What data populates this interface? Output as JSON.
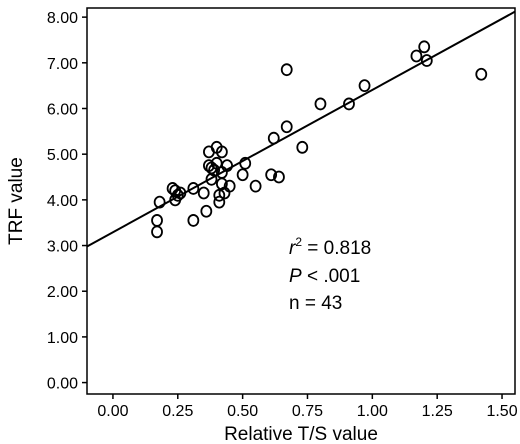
{
  "chart_data": {
    "type": "scatter",
    "xlabel": "Relative T/S value",
    "ylabel": "TRF value",
    "xlim": [
      -0.1,
      1.55
    ],
    "ylim": [
      -0.25,
      8.2
    ],
    "x_ticks": [
      "0.00",
      "0.25",
      "0.50",
      "0.75",
      "1.00",
      "1.25",
      "1.50"
    ],
    "x_tick_values": [
      0,
      0.25,
      0.5,
      0.75,
      1.0,
      1.25,
      1.5
    ],
    "y_ticks": [
      "0.00",
      "1.00",
      "2.00",
      "3.00",
      "4.00",
      "5.00",
      "6.00",
      "7.00",
      "8.00"
    ],
    "y_tick_values": [
      0,
      1,
      2,
      3,
      4,
      5,
      6,
      7,
      8
    ],
    "grid": false,
    "points": [
      {
        "x": 0.17,
        "y": 3.3
      },
      {
        "x": 0.17,
        "y": 3.55
      },
      {
        "x": 0.18,
        "y": 3.95
      },
      {
        "x": 0.23,
        "y": 4.25
      },
      {
        "x": 0.24,
        "y": 4.2
      },
      {
        "x": 0.25,
        "y": 4.1
      },
      {
        "x": 0.24,
        "y": 4.0
      },
      {
        "x": 0.26,
        "y": 4.15
      },
      {
        "x": 0.31,
        "y": 3.55
      },
      {
        "x": 0.31,
        "y": 4.25
      },
      {
        "x": 0.35,
        "y": 4.15
      },
      {
        "x": 0.36,
        "y": 3.75
      },
      {
        "x": 0.37,
        "y": 4.75
      },
      {
        "x": 0.37,
        "y": 5.05
      },
      {
        "x": 0.38,
        "y": 4.45
      },
      {
        "x": 0.38,
        "y": 4.7
      },
      {
        "x": 0.39,
        "y": 4.65
      },
      {
        "x": 0.4,
        "y": 4.8
      },
      {
        "x": 0.4,
        "y": 5.15
      },
      {
        "x": 0.41,
        "y": 4.1
      },
      {
        "x": 0.41,
        "y": 3.95
      },
      {
        "x": 0.42,
        "y": 4.6
      },
      {
        "x": 0.42,
        "y": 4.35
      },
      {
        "x": 0.42,
        "y": 5.05
      },
      {
        "x": 0.43,
        "y": 4.15
      },
      {
        "x": 0.44,
        "y": 4.75
      },
      {
        "x": 0.45,
        "y": 4.3
      },
      {
        "x": 0.5,
        "y": 4.55
      },
      {
        "x": 0.51,
        "y": 4.8
      },
      {
        "x": 0.55,
        "y": 4.3
      },
      {
        "x": 0.61,
        "y": 4.55
      },
      {
        "x": 0.62,
        "y": 5.35
      },
      {
        "x": 0.64,
        "y": 4.5
      },
      {
        "x": 0.67,
        "y": 5.6
      },
      {
        "x": 0.67,
        "y": 6.85
      },
      {
        "x": 0.73,
        "y": 5.15
      },
      {
        "x": 0.8,
        "y": 6.1
      },
      {
        "x": 0.91,
        "y": 6.1
      },
      {
        "x": 0.97,
        "y": 6.5
      },
      {
        "x": 1.17,
        "y": 7.15
      },
      {
        "x": 1.2,
        "y": 7.35
      },
      {
        "x": 1.21,
        "y": 7.05
      },
      {
        "x": 1.42,
        "y": 6.75
      }
    ],
    "fit_line": {
      "x": [
        -0.1,
        1.55
      ],
      "y": [
        2.98,
        8.12
      ]
    },
    "annotations": {
      "r_symbol": "r",
      "r_exponent": "2",
      "r_value": " = 0.818",
      "p_symbol": "P",
      "p_value": " < .001",
      "n_text": "n =  43"
    }
  }
}
